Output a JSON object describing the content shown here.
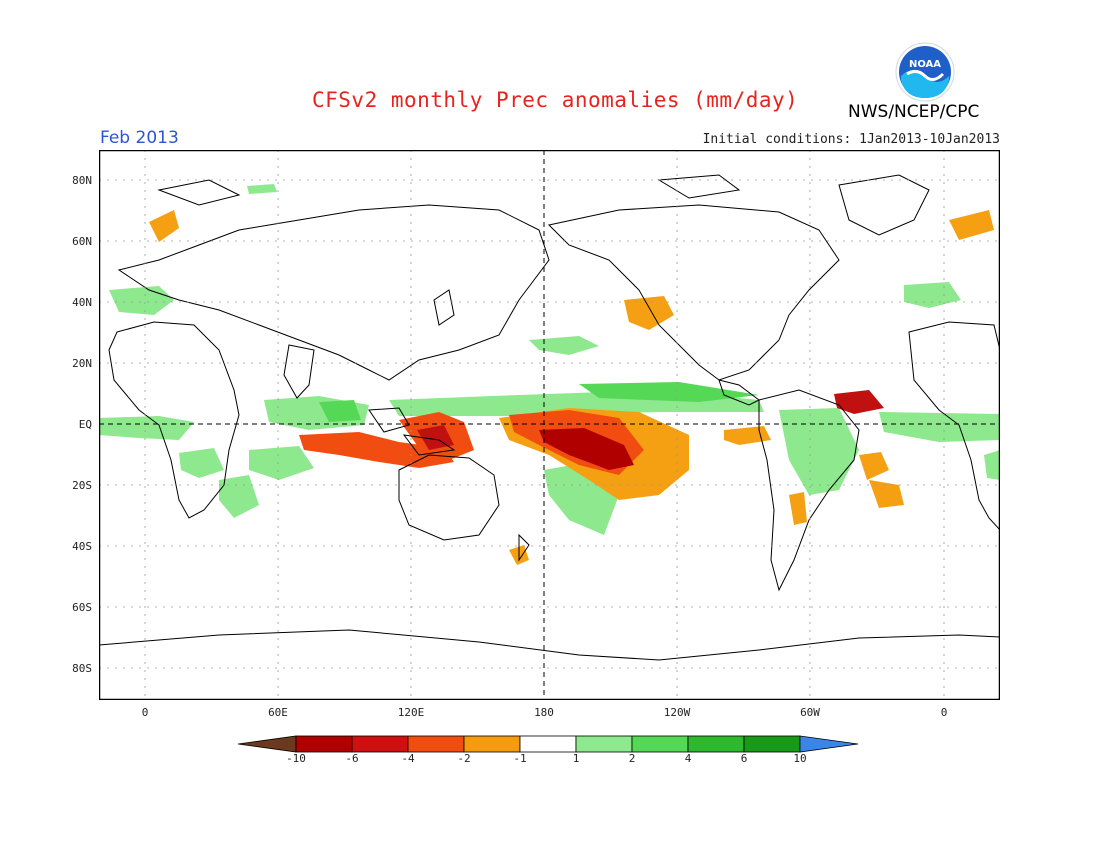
{
  "header": {
    "title": "CFSv2 monthly Prec anomalies (mm/day)",
    "month": "Feb 2013",
    "initial_conditions": "Initial conditions: 1Jan2013-10Jan2013",
    "agency": "NWS/NCEP/CPC",
    "logo_text": "NOAA"
  },
  "axes": {
    "lat_labels": [
      "80N",
      "60N",
      "40N",
      "20N",
      "EQ",
      "20S",
      "40S",
      "60S",
      "80S"
    ],
    "lon_labels": [
      "0",
      "60E",
      "120E",
      "180",
      "120W",
      "60W",
      "0"
    ]
  },
  "colorbar": {
    "labels": [
      "-10",
      "-6",
      "-4",
      "-2",
      "-1",
      "1",
      "2",
      "4",
      "6",
      "10"
    ],
    "colors": [
      "#6b3a1e",
      "#b00000",
      "#d01010",
      "#f24d10",
      "#f59b10",
      "#ffffff",
      "#8ee88e",
      "#55d855",
      "#2eb82e",
      "#189a18",
      "#3a86e8"
    ]
  },
  "anomaly_colors": {
    "dry_strong": "#b80000",
    "dry_mod": "#e8361a",
    "dry_weak": "#f5a012",
    "wet_weak": "#9aea9a",
    "wet_mod": "#55d655",
    "wet_strong": "#2ab52a"
  }
}
